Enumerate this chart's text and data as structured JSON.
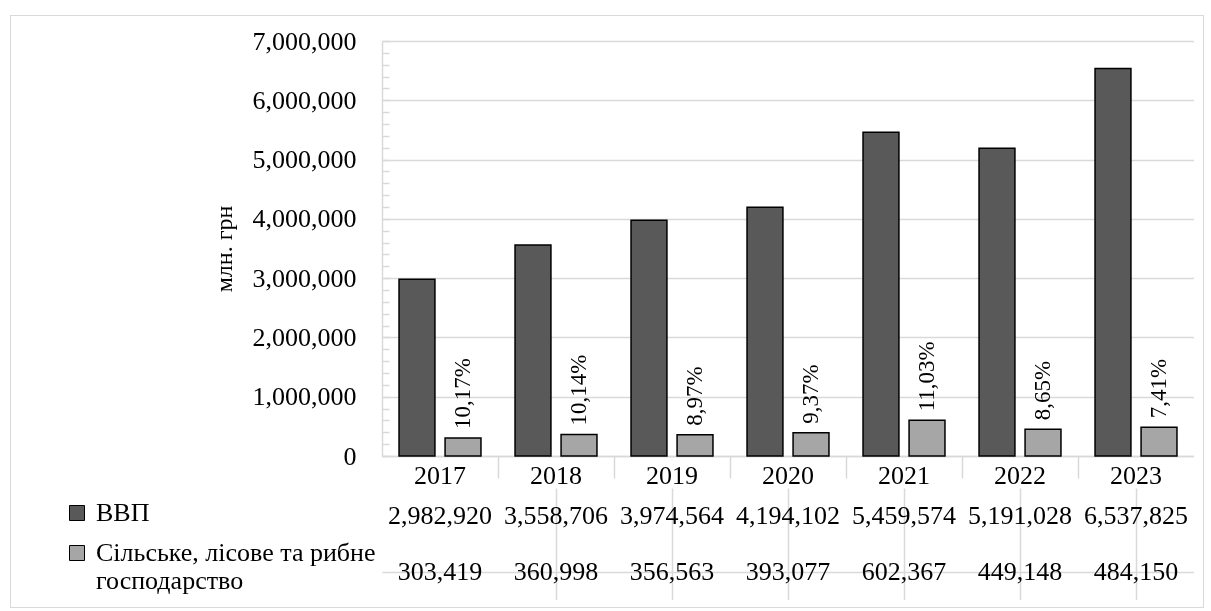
{
  "chart_data": {
    "type": "bar",
    "ylabel": "млн. грн",
    "categories": [
      "2017",
      "2018",
      "2019",
      "2020",
      "2021",
      "2022",
      "2023"
    ],
    "series": [
      {
        "name": "ВВП",
        "color": "#595959",
        "values": [
          2982920,
          3558706,
          3974564,
          4194102,
          5459574,
          5191028,
          6537825
        ],
        "value_labels": [
          "2,982,920",
          "3,558,706",
          "3,974,564",
          "4,194,102",
          "5,459,574",
          "5,191,028",
          "6,537,825"
        ]
      },
      {
        "name": "Сільське, лісове та рибне господарство",
        "color": "#a6a6a6",
        "values": [
          303419,
          360998,
          356563,
          393077,
          602367,
          449148,
          484150
        ],
        "value_labels": [
          "303,419",
          "360,998",
          "356,563",
          "393,077",
          "602,367",
          "449,148",
          "484,150"
        ]
      }
    ],
    "ylim": [
      0,
      7000000
    ],
    "yticks": [
      0,
      {
        "value": 200000,
        "label": null
      },
      {
        "value": 400000,
        "label": null
      },
      {
        "value": 600000,
        "label": null
      },
      {
        "value": 800000,
        "label": null
      },
      {
        "value": 1000000,
        "label": "1,000,000"
      },
      {
        "value": 1200000,
        "label": null
      },
      {
        "value": 1400000,
        "label": null
      },
      {
        "value": 1600000,
        "label": null
      },
      {
        "value": 1800000,
        "label": null
      },
      {
        "value": 2000000,
        "label": "2,000,000"
      },
      {
        "value": 2200000,
        "label": null
      },
      {
        "value": 2400000,
        "label": null
      },
      {
        "value": 2600000,
        "label": null
      },
      {
        "value": 2800000,
        "label": null
      },
      {
        "value": 3000000,
        "label": "3,000,000"
      },
      {
        "value": 3200000,
        "label": null
      },
      {
        "value": 3400000,
        "label": null
      },
      {
        "value": 3600000,
        "label": null
      },
      {
        "value": 3800000,
        "label": null
      },
      {
        "value": 4000000,
        "label": "4,000,000"
      },
      {
        "value": 4200000,
        "label": null
      },
      {
        "value": 4400000,
        "label": null
      },
      {
        "value": 4600000,
        "label": null
      },
      {
        "value": 4800000,
        "label": null
      },
      {
        "value": 5000000,
        "label": "5,000,000"
      },
      {
        "value": 5200000,
        "label": null
      },
      {
        "value": 5400000,
        "label": null
      },
      {
        "value": 5600000,
        "label": null
      },
      {
        "value": 5800000,
        "label": null
      },
      {
        "value": 6000000,
        "label": "6,000,000"
      },
      {
        "value": 6200000,
        "label": null
      },
      {
        "value": 6400000,
        "label": null
      },
      {
        "value": 6600000,
        "label": null
      },
      {
        "value": 6800000,
        "label": null
      },
      {
        "value": 7000000,
        "label": "7,000,000"
      }
    ],
    "grid": "y",
    "legend": "bottom left",
    "annotations": [
      "10,17%",
      "10,14%",
      "8,97%",
      "9,37%",
      "11,03%",
      "8,65%",
      "7,41%"
    ]
  }
}
